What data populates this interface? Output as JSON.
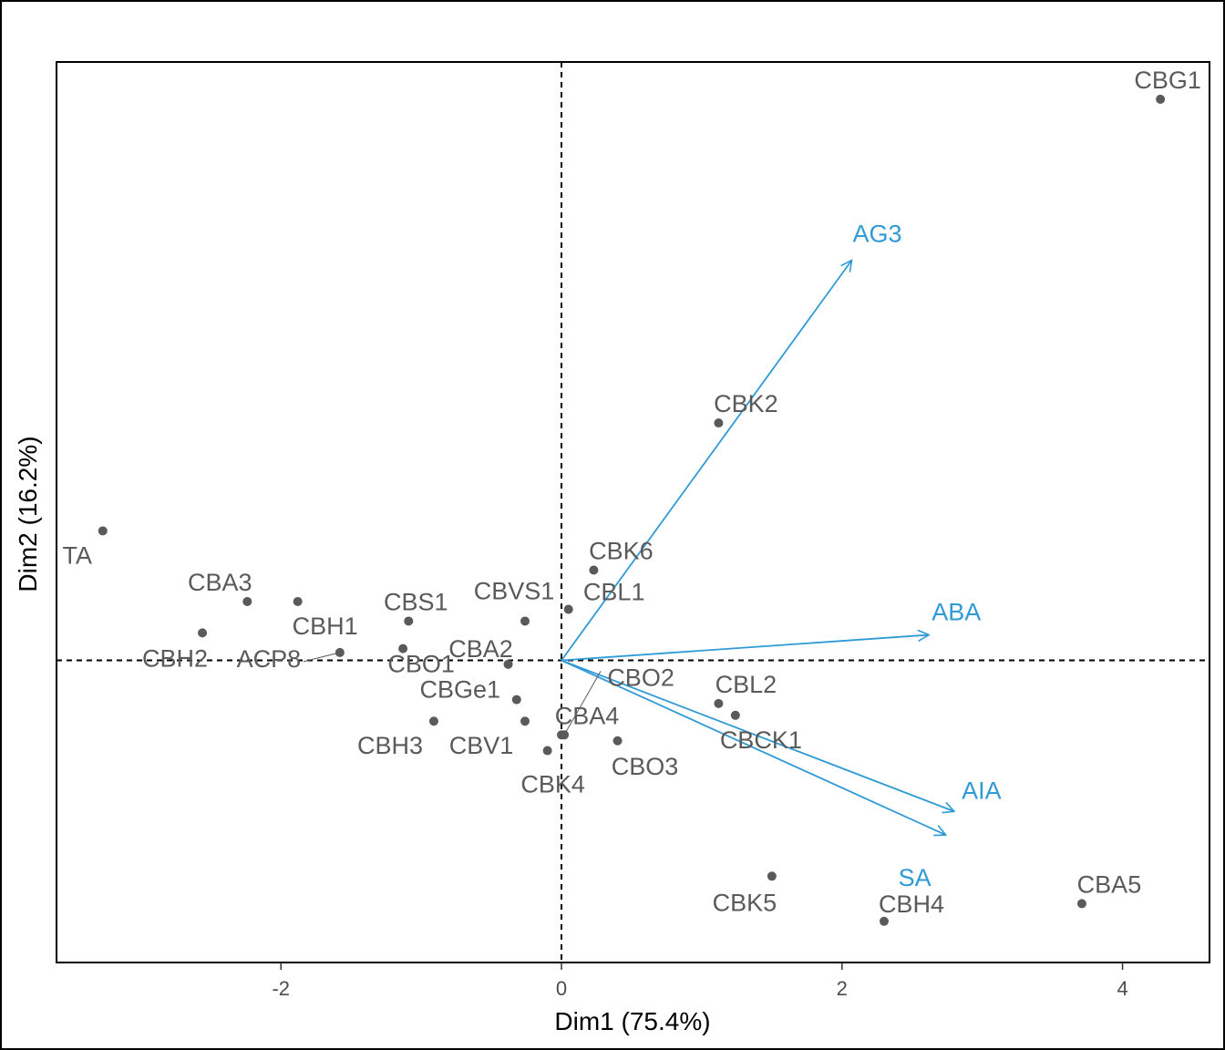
{
  "chart_data": {
    "type": "biplot",
    "xlabel": "Dim1 (75.4%)",
    "ylabel": "Dim2 (16.2%)",
    "xlim": [
      -3.6,
      4.62
    ],
    "ylim": [
      -1.54,
      3.05
    ],
    "x_ticks": [
      {
        "value": -2,
        "label": "-2"
      },
      {
        "value": 0,
        "label": "0"
      },
      {
        "value": 2,
        "label": "2"
      },
      {
        "value": 4,
        "label": "4"
      }
    ],
    "grid": false,
    "reference_lines": {
      "x": 0,
      "y": 0,
      "style": "dashed"
    },
    "point_color": "#5a5a5a",
    "arrow_color": "#2f9bd6",
    "points": [
      {
        "name": "CBG1",
        "x": 4.27,
        "y": 2.86
      },
      {
        "name": "CBK2",
        "x": 1.12,
        "y": 1.21
      },
      {
        "name": "TA",
        "x": -3.27,
        "y": 0.66
      },
      {
        "name": "CBK6",
        "x": 0.23,
        "y": 0.46
      },
      {
        "name": "CBA3",
        "x": -2.24,
        "y": 0.3
      },
      {
        "name": "CBVS1",
        "x": -0.26,
        "y": 0.2
      },
      {
        "name": "CBL1",
        "x": 0.05,
        "y": 0.26
      },
      {
        "name": "CBS1",
        "x": -1.09,
        "y": 0.2
      },
      {
        "name": "CBH1",
        "x": -1.88,
        "y": 0.3
      },
      {
        "name": "CBH2",
        "x": -2.56,
        "y": 0.14
      },
      {
        "name": "ACP8",
        "x": -1.58,
        "y": 0.04
      },
      {
        "name": "CBO1",
        "x": -1.13,
        "y": 0.06
      },
      {
        "name": "CBA2",
        "x": -0.38,
        "y": -0.02
      },
      {
        "name": "CBO2",
        "x": 0.02,
        "y": -0.38
      },
      {
        "name": "CBGe1",
        "x": -0.32,
        "y": -0.2
      },
      {
        "name": "CBA4",
        "x": 0.0,
        "y": -0.38
      },
      {
        "name": "CBL2",
        "x": 1.12,
        "y": -0.22
      },
      {
        "name": "CBCK1",
        "x": 1.24,
        "y": -0.28
      },
      {
        "name": "CBH3",
        "x": -0.91,
        "y": -0.31
      },
      {
        "name": "CBV1",
        "x": -0.26,
        "y": -0.31
      },
      {
        "name": "CBK4",
        "x": -0.1,
        "y": -0.46
      },
      {
        "name": "CBO3",
        "x": 0.4,
        "y": -0.41
      },
      {
        "name": "CBK5",
        "x": 1.5,
        "y": -1.1
      },
      {
        "name": "CBH4",
        "x": 2.3,
        "y": -1.33
      },
      {
        "name": "CBA5",
        "x": 3.71,
        "y": -1.24
      }
    ],
    "arrows": [
      {
        "name": "AG3",
        "x": 2.07,
        "y": 2.04
      },
      {
        "name": "ABA",
        "x": 2.62,
        "y": 0.13
      },
      {
        "name": "AIA",
        "x": 2.8,
        "y": -0.77
      },
      {
        "name": "SA",
        "x": 2.74,
        "y": -0.89
      }
    ]
  }
}
